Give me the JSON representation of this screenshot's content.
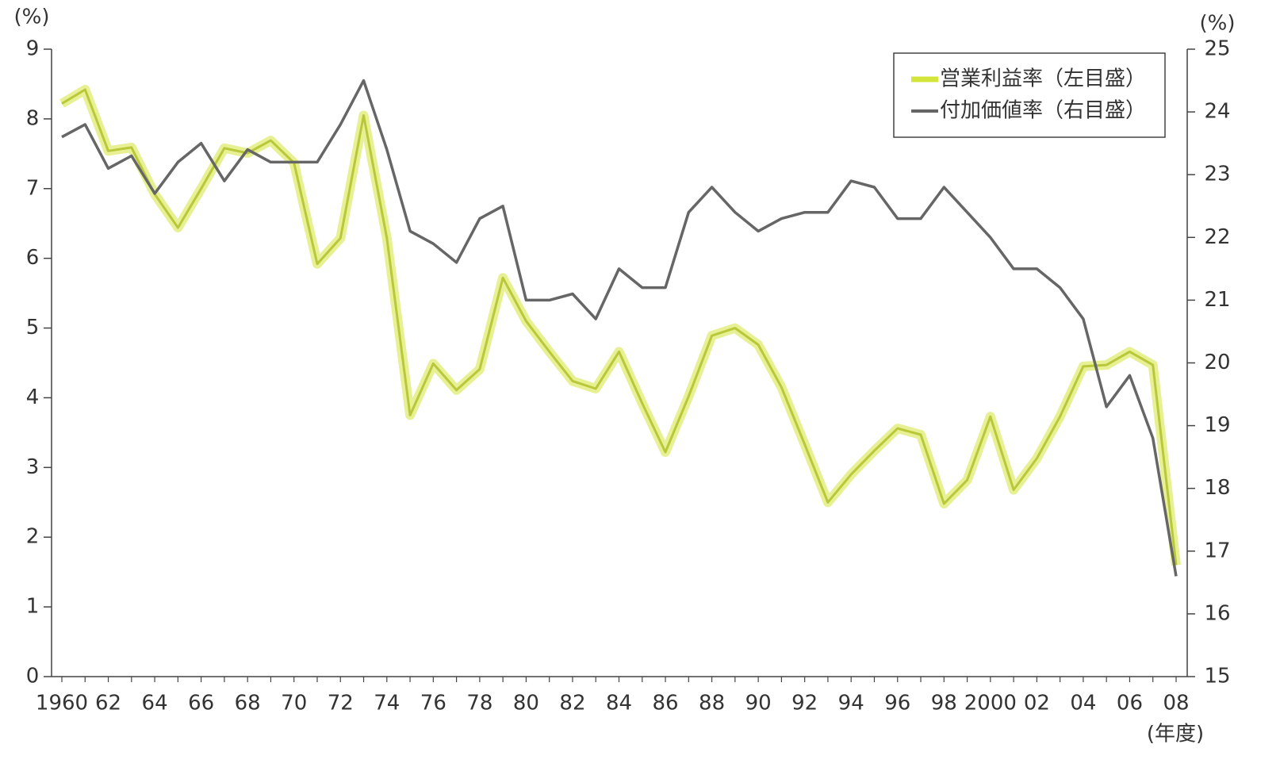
{
  "chart_data": {
    "type": "line",
    "y_label": "(%)",
    "y2_label": "(%)",
    "x_label": "(年度)",
    "categories": [
      "1960",
      null,
      "62",
      null,
      "64",
      null,
      "66",
      null,
      "68",
      null,
      "70",
      null,
      "72",
      null,
      "74",
      null,
      "76",
      null,
      "78",
      null,
      "80",
      null,
      "82",
      null,
      "84",
      null,
      "86",
      null,
      "88",
      null,
      "90",
      null,
      "92",
      null,
      "94",
      null,
      "96",
      null,
      "98",
      null,
      "2000",
      null,
      "02",
      null,
      "04",
      null,
      "06",
      null,
      "08"
    ],
    "series": [
      {
        "name": "営業利益率（左目盛）",
        "color": "#d3e43a",
        "axis": "y",
        "values": [
          8.22,
          8.42,
          7.54,
          7.59,
          6.92,
          6.44,
          7.0,
          7.58,
          7.51,
          7.69,
          7.37,
          5.92,
          6.29,
          8.05,
          6.29,
          3.75,
          4.49,
          4.11,
          4.41,
          5.72,
          5.1,
          4.66,
          4.24,
          4.13,
          4.66,
          3.92,
          3.22,
          4.02,
          4.89,
          5.0,
          4.76,
          4.15,
          3.33,
          2.5,
          2.9,
          3.24,
          3.56,
          3.47,
          2.48,
          2.82,
          3.73,
          2.68,
          3.13,
          3.73,
          4.45,
          4.47,
          4.66,
          4.47,
          1.6
        ]
      },
      {
        "name": "付加価値率（右目盛）",
        "color": "#666666",
        "axis": "y2",
        "values": [
          23.6,
          23.8,
          23.1,
          23.3,
          22.7,
          23.2,
          23.5,
          22.9,
          23.4,
          23.2,
          23.2,
          23.2,
          23.8,
          24.5,
          23.4,
          22.1,
          21.9,
          21.6,
          22.3,
          22.5,
          21.0,
          21.0,
          21.1,
          20.7,
          21.5,
          21.2,
          21.2,
          22.4,
          22.8,
          22.4,
          22.1,
          22.3,
          22.4,
          22.4,
          22.9,
          22.8,
          22.3,
          22.3,
          22.8,
          22.4,
          22.0,
          21.5,
          21.5,
          21.2,
          20.7,
          19.3,
          19.8,
          18.8,
          16.6
        ]
      }
    ],
    "ylim": [
      0,
      9
    ],
    "yticks": [
      0,
      1,
      2,
      3,
      4,
      5,
      6,
      7,
      8,
      9
    ],
    "y2lim": [
      15,
      25
    ],
    "y2ticks": [
      15,
      16,
      17,
      18,
      19,
      20,
      21,
      22,
      23,
      24,
      25
    ],
    "legend": "upper right",
    "grid": false
  }
}
